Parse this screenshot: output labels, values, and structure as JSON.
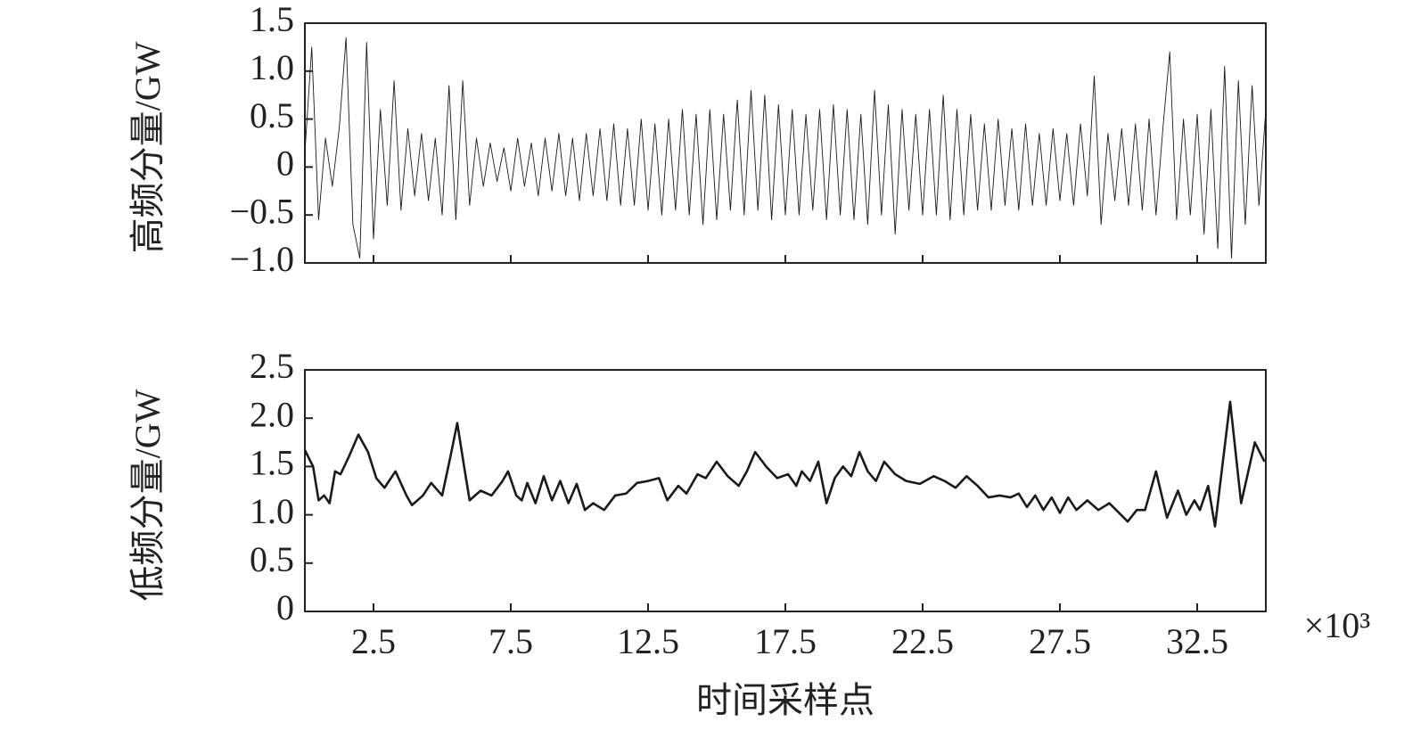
{
  "chart_data": [
    {
      "type": "line",
      "ylabel": "高频分量/GW",
      "color": "#1a1a1a",
      "line_width": 0.9,
      "xtick_labels": false,
      "xlim": [
        0,
        35
      ],
      "ylim": [
        -1.0,
        1.5
      ],
      "xticks": [
        2.5,
        7.5,
        12.5,
        17.5,
        22.5,
        27.5,
        32.5
      ],
      "yticks": [
        {
          "value": -1.0,
          "label": "−1.0"
        },
        {
          "value": -0.5,
          "label": "−0.5"
        },
        0,
        0.5,
        {
          "value": 1.0,
          "label": "1.0"
        },
        1.5
      ],
      "x": [
        0,
        0.25,
        0.5,
        0.75,
        1,
        1.25,
        1.5,
        1.75,
        2,
        2.25,
        2.5,
        2.75,
        3,
        3.25,
        3.5,
        3.75,
        4,
        4.25,
        4.5,
        4.75,
        5,
        5.25,
        5.5,
        5.75,
        6,
        6.25,
        6.5,
        6.75,
        7,
        7.25,
        7.5,
        7.75,
        8,
        8.25,
        8.5,
        8.75,
        9,
        9.25,
        9.5,
        9.75,
        10,
        10.25,
        10.5,
        10.75,
        11,
        11.25,
        11.5,
        11.75,
        12,
        12.25,
        12.5,
        12.75,
        13,
        13.25,
        13.5,
        13.75,
        14,
        14.25,
        14.5,
        14.75,
        15,
        15.25,
        15.5,
        15.75,
        16,
        16.25,
        16.5,
        16.75,
        17,
        17.25,
        17.5,
        17.75,
        18,
        18.25,
        18.5,
        18.75,
        19,
        19.25,
        19.5,
        19.75,
        20,
        20.25,
        20.5,
        20.75,
        21,
        21.25,
        21.5,
        21.75,
        22,
        22.25,
        22.5,
        22.75,
        23,
        23.25,
        23.5,
        23.75,
        24,
        24.25,
        24.5,
        24.75,
        25,
        25.25,
        25.5,
        25.75,
        26,
        26.25,
        26.5,
        26.75,
        27,
        27.25,
        27.5,
        27.75,
        28,
        28.25,
        28.5,
        28.75,
        29,
        29.25,
        29.5,
        29.75,
        30,
        30.25,
        30.5,
        30.75,
        31,
        31.25,
        31.5,
        31.75,
        32,
        32.25,
        32.5,
        32.75,
        33,
        33.25,
        33.5,
        33.75,
        34,
        34.25,
        34.5,
        34.75,
        35
      ],
      "values": [
        0.15,
        1.25,
        -0.55,
        0.3,
        -0.2,
        0.4,
        1.35,
        -0.6,
        -0.95,
        1.3,
        -0.75,
        0.6,
        -0.4,
        0.9,
        -0.45,
        0.4,
        -0.3,
        0.35,
        -0.35,
        0.3,
        -0.5,
        0.85,
        -0.55,
        0.9,
        -0.4,
        0.3,
        -0.2,
        0.25,
        -0.15,
        0.2,
        -0.25,
        0.3,
        -0.2,
        0.25,
        -0.3,
        0.3,
        -0.25,
        0.35,
        -0.3,
        0.3,
        -0.35,
        0.35,
        -0.3,
        0.4,
        -0.35,
        0.45,
        -0.4,
        0.4,
        -0.4,
        0.5,
        -0.45,
        0.45,
        -0.5,
        0.5,
        -0.45,
        0.6,
        -0.5,
        0.55,
        -0.6,
        0.6,
        -0.55,
        0.55,
        -0.45,
        0.7,
        -0.5,
        0.8,
        -0.45,
        0.75,
        -0.55,
        0.65,
        -0.5,
        0.6,
        -0.5,
        0.55,
        -0.45,
        0.6,
        -0.55,
        0.65,
        -0.5,
        0.6,
        -0.55,
        0.55,
        -0.6,
        0.8,
        -0.5,
        0.65,
        -0.7,
        0.6,
        -0.45,
        0.55,
        -0.5,
        0.6,
        -0.5,
        0.75,
        -0.55,
        0.6,
        -0.5,
        0.55,
        -0.45,
        0.45,
        -0.45,
        0.5,
        -0.4,
        0.4,
        -0.45,
        0.45,
        -0.4,
        0.35,
        -0.4,
        0.4,
        -0.35,
        0.35,
        -0.4,
        0.45,
        -0.3,
        0.95,
        -0.6,
        0.35,
        -0.35,
        0.4,
        -0.4,
        0.45,
        -0.45,
        0.5,
        -0.5,
        0.4,
        1.2,
        -0.55,
        0.5,
        -0.5,
        0.55,
        -0.7,
        0.6,
        -0.85,
        1.05,
        -0.95,
        0.9,
        -0.6,
        0.85,
        -0.4,
        0.6
      ]
    },
    {
      "type": "line",
      "ylabel": "低频分量/GW",
      "xlabel": "时间采样点",
      "x_scale_note": "×10³",
      "color": "#1a1a1a",
      "line_width": 2.6,
      "xtick_labels": true,
      "xlim": [
        0,
        35
      ],
      "ylim": [
        0,
        2.5
      ],
      "xticks": [
        2.5,
        7.5,
        12.5,
        17.5,
        22.5,
        27.5,
        32.5
      ],
      "yticks": [
        0,
        0.5,
        {
          "value": 1.0,
          "label": "1.0"
        },
        1.5,
        {
          "value": 2.0,
          "label": "2.0"
        },
        2.5
      ],
      "x": [
        0,
        0.3,
        0.5,
        0.7,
        0.9,
        1.1,
        1.3,
        1.6,
        1.95,
        2.3,
        2.6,
        2.9,
        3.3,
        3.7,
        3.9,
        4.3,
        4.6,
        5.0,
        5.3,
        5.55,
        5.8,
        6.0,
        6.4,
        6.8,
        7.2,
        7.4,
        7.7,
        7.9,
        8.1,
        8.4,
        8.7,
        9.0,
        9.3,
        9.6,
        9.9,
        10.2,
        10.5,
        10.9,
        11.3,
        11.7,
        12.1,
        12.5,
        12.9,
        13.2,
        13.6,
        13.9,
        14.3,
        14.6,
        15.0,
        15.4,
        15.8,
        16.1,
        16.4,
        16.8,
        17.2,
        17.6,
        17.9,
        18.1,
        18.4,
        18.7,
        19.0,
        19.3,
        19.6,
        19.9,
        20.2,
        20.5,
        20.8,
        21.1,
        21.5,
        21.9,
        22.4,
        22.9,
        23.3,
        23.7,
        24.1,
        24.5,
        24.9,
        25.3,
        25.7,
        26.0,
        26.3,
        26.6,
        26.9,
        27.2,
        27.5,
        27.8,
        28.1,
        28.5,
        28.9,
        29.3,
        29.97,
        30.3,
        30.6,
        31.0,
        31.4,
        31.8,
        32.1,
        32.4,
        32.6,
        32.9,
        33.15,
        33.7,
        34.1,
        34.6,
        34.95
      ],
      "values": [
        1.67,
        1.5,
        1.15,
        1.2,
        1.12,
        1.45,
        1.42,
        1.6,
        1.83,
        1.65,
        1.38,
        1.28,
        1.45,
        1.2,
        1.1,
        1.2,
        1.33,
        1.2,
        1.6,
        1.95,
        1.5,
        1.15,
        1.25,
        1.2,
        1.35,
        1.45,
        1.2,
        1.15,
        1.33,
        1.12,
        1.4,
        1.15,
        1.35,
        1.12,
        1.32,
        1.05,
        1.12,
        1.05,
        1.2,
        1.22,
        1.33,
        1.35,
        1.38,
        1.15,
        1.3,
        1.22,
        1.42,
        1.38,
        1.55,
        1.4,
        1.3,
        1.45,
        1.65,
        1.5,
        1.38,
        1.42,
        1.3,
        1.45,
        1.35,
        1.55,
        1.12,
        1.38,
        1.5,
        1.4,
        1.65,
        1.45,
        1.35,
        1.55,
        1.42,
        1.35,
        1.32,
        1.4,
        1.35,
        1.28,
        1.4,
        1.3,
        1.18,
        1.2,
        1.18,
        1.22,
        1.08,
        1.2,
        1.05,
        1.18,
        1.02,
        1.18,
        1.05,
        1.15,
        1.05,
        1.12,
        0.93,
        1.05,
        1.05,
        1.45,
        0.97,
        1.25,
        1.0,
        1.15,
        1.05,
        1.3,
        0.88,
        2.17,
        1.12,
        1.75,
        1.55
      ]
    }
  ]
}
